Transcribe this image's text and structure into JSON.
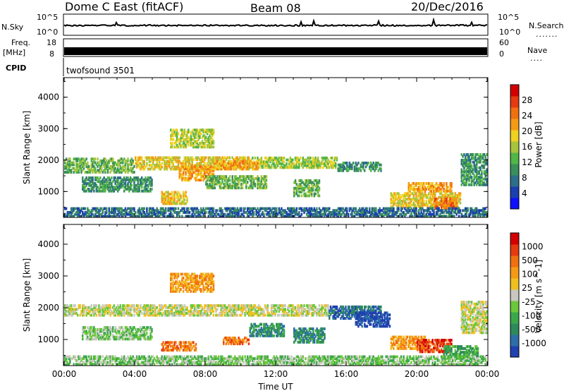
{
  "header": {
    "title": "Dome C East (fitACF)",
    "beam": "Beam 08",
    "date": "20/Dec/2016"
  },
  "top_panels": {
    "nsky_label": "N.Sky",
    "nsearch_label": "N.Search",
    "noise_tick_hi": "10^5",
    "noise_tick_lo": "10^0",
    "freq_label": "Freq.",
    "freq_unit": "[MHz]",
    "freq_tick_hi": "18",
    "freq_tick_lo": "8",
    "nave_label": "Nave",
    "nave_tick_hi": "60",
    "nave_tick_lo": "0",
    "cpid_label": "CPID",
    "cpid_value": "twofsound 3501"
  },
  "chart_data": [
    {
      "type": "heatmap",
      "name": "power",
      "ylabel": "Slant Range [km]",
      "ytick_labels": [
        "1000",
        "2000",
        "3000",
        "4000"
      ],
      "ylim": [
        200,
        4600
      ],
      "colorbar_label": "Power [dB]",
      "colorbar_ticks": [
        "4",
        "8",
        "12",
        "16",
        "20",
        "24",
        "28"
      ],
      "colors": [
        "#1010ff",
        "#1a3fb0",
        "#2d6e8a",
        "#3a8f5a",
        "#52b548",
        "#a6c43c",
        "#f0d020",
        "#f59a15",
        "#f07010",
        "#e63a10",
        "#d40000"
      ],
      "blobs": [
        {
          "t": [
            0.0,
            4.0
          ],
          "r": [
            1600,
            2050
          ],
          "v": 14
        },
        {
          "t": [
            4.0,
            10.5
          ],
          "r": [
            1700,
            2100
          ],
          "v": 19
        },
        {
          "t": [
            10.5,
            15.5
          ],
          "r": [
            1750,
            2100
          ],
          "v": 18
        },
        {
          "t": [
            15.5,
            18.0
          ],
          "r": [
            1650,
            1950
          ],
          "v": 12
        },
        {
          "t": [
            6.5,
            8.5
          ],
          "r": [
            1350,
            1800
          ],
          "v": 21
        },
        {
          "t": [
            8.5,
            11.0
          ],
          "r": [
            1700,
            2000
          ],
          "v": 23
        },
        {
          "t": [
            13.0,
            14.5
          ],
          "r": [
            850,
            1400
          ],
          "v": 15
        },
        {
          "t": [
            18.5,
            22.5
          ],
          "r": [
            500,
            1000
          ],
          "v": 20
        },
        {
          "t": [
            21.0,
            22.3
          ],
          "r": [
            450,
            800
          ],
          "v": 26
        },
        {
          "t": [
            5.5,
            7.0
          ],
          "r": [
            600,
            1000
          ],
          "v": 20
        },
        {
          "t": [
            6.0,
            8.5
          ],
          "r": [
            2400,
            3000
          ],
          "v": 16
        },
        {
          "t": [
            0.0,
            24.0
          ],
          "r": [
            200,
            500
          ],
          "v": 9
        },
        {
          "t": [
            19.5,
            22.0
          ],
          "r": [
            1000,
            1300
          ],
          "v": 22
        },
        {
          "t": [
            22.5,
            24.0
          ],
          "r": [
            1200,
            2200
          ],
          "v": 11
        },
        {
          "t": [
            1.0,
            5.0
          ],
          "r": [
            1000,
            1500
          ],
          "v": 12
        },
        {
          "t": [
            8.0,
            11.5
          ],
          "r": [
            1100,
            1500
          ],
          "v": 14
        }
      ]
    },
    {
      "type": "heatmap",
      "name": "velocity",
      "xlabel": "Time UT",
      "ylabel": "Slant Range [km]",
      "xtick_labels": [
        "00:00",
        "04:00",
        "08:00",
        "12:00",
        "16:00",
        "20:00",
        "00:00"
      ],
      "xlim": [
        0,
        24
      ],
      "ytick_labels": [
        "1000",
        "2000",
        "3000",
        "4000"
      ],
      "ylim": [
        200,
        4600
      ],
      "colorbar_label": "Velocity [m s^-1]",
      "colorbar_ticks": [
        "1000",
        "500",
        "100",
        "25",
        "-25",
        "-100",
        "-500",
        "-1000"
      ],
      "colors": [
        "#2040b0",
        "#2d6ea8",
        "#2e8a5a",
        "#3aa84a",
        "#6ac83a",
        "#c8c8c0",
        "#f0c020",
        "#f59a15",
        "#f07010",
        "#e63a10",
        "#d40000"
      ],
      "blobs": [
        {
          "t": [
            0.0,
            15.0
          ],
          "r": [
            1750,
            2100
          ],
          "v": 5
        },
        {
          "t": [
            15.0,
            18.0
          ],
          "r": [
            1650,
            2050
          ],
          "v": 1
        },
        {
          "t": [
            13.0,
            14.8
          ],
          "r": [
            900,
            1400
          ],
          "v": 2
        },
        {
          "t": [
            18.5,
            20.5
          ],
          "r": [
            700,
            1100
          ],
          "v": 7
        },
        {
          "t": [
            20.0,
            22.0
          ],
          "r": [
            600,
            1000
          ],
          "v": 9
        },
        {
          "t": [
            21.5,
            23.5
          ],
          "r": [
            400,
            800
          ],
          "v": 3
        },
        {
          "t": [
            5.5,
            7.5
          ],
          "r": [
            650,
            950
          ],
          "v": 8
        },
        {
          "t": [
            9.0,
            10.5
          ],
          "r": [
            850,
            1100
          ],
          "v": 8
        },
        {
          "t": [
            6.0,
            8.5
          ],
          "r": [
            2500,
            3100
          ],
          "v": 7
        },
        {
          "t": [
            0.0,
            24.0
          ],
          "r": [
            200,
            500
          ],
          "v": 4
        },
        {
          "t": [
            16.5,
            18.5
          ],
          "r": [
            1400,
            1900
          ],
          "v": 0
        },
        {
          "t": [
            22.5,
            24.0
          ],
          "r": [
            1200,
            2200
          ],
          "v": 5
        },
        {
          "t": [
            1.0,
            5.0
          ],
          "r": [
            1000,
            1400
          ],
          "v": 4
        },
        {
          "t": [
            10.5,
            12.5
          ],
          "r": [
            1100,
            1500
          ],
          "v": 2
        }
      ]
    }
  ]
}
